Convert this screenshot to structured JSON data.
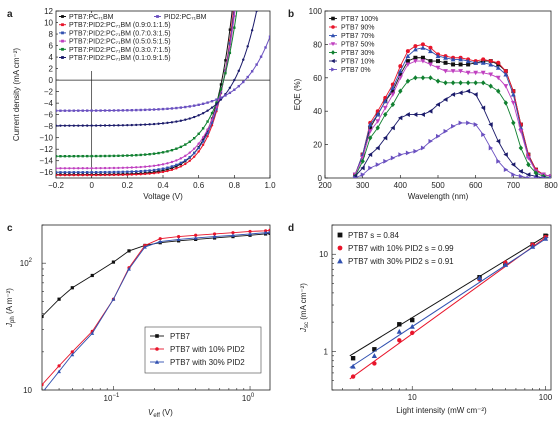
{
  "chart_data": [
    {
      "panel": "a",
      "type": "line",
      "xlabel": "Voltage (V)",
      "ylabel": "Current density (mA cm⁻²)",
      "xlim": [
        -0.2,
        1.0
      ],
      "ylim": [
        -17,
        12
      ],
      "xticks": [
        "-0.2",
        "0",
        "0.2",
        "0.4",
        "0.6",
        "0.8",
        "1.0"
      ],
      "yticks": [
        "-16",
        "-14",
        "-12",
        "-10",
        "-8",
        "-6",
        "-4",
        "-2",
        "0",
        "2",
        "4",
        "6",
        "8",
        "10",
        "12"
      ],
      "legend_position": "top-left",
      "series": [
        {
          "name": "PTB7:PC₇₁BM",
          "color": "#111111",
          "jsc": -16.4,
          "voc": 0.73,
          "ff": 0.68
        },
        {
          "name": "PTB7:PID2:PC₇₁BM (0.9:0.1:1.5)",
          "color": "#e8142a",
          "jsc": -16.5,
          "voc": 0.74,
          "ff": 0.7
        },
        {
          "name": "PTB7:PID2:PC₇₁BM (0.7:0.3:1.5)",
          "color": "#3050b0",
          "jsc": -16.0,
          "voc": 0.74,
          "ff": 0.68
        },
        {
          "name": "PTB7:PID2:PC₇₁BM (0.5:0.5:1.5)",
          "color": "#c040c0",
          "jsc": -15.3,
          "voc": 0.74,
          "ff": 0.66
        },
        {
          "name": "PTB7:PID2:PC₇₁BM (0.3:0.7:1.5)",
          "color": "#108030",
          "jsc": -13.2,
          "voc": 0.74,
          "ff": 0.64
        },
        {
          "name": "PTB7:PID2:PC₇₁BM (0.1:0.9:1.5)",
          "color": "#1a1a6a",
          "jsc": -7.9,
          "voc": 0.8,
          "ff": 0.55
        },
        {
          "name": "PID2:PC₇₁BM",
          "color": "#6a50c0",
          "jsc": -5.3,
          "voc": 0.86,
          "ff": 0.45
        }
      ]
    },
    {
      "panel": "b",
      "type": "line",
      "xlabel": "Wavelength (nm)",
      "ylabel": "EQE (%)",
      "xlim": [
        200,
        800
      ],
      "ylim": [
        0,
        100
      ],
      "xticks": [
        "200",
        "300",
        "400",
        "500",
        "600",
        "700",
        "800"
      ],
      "yticks": [
        "0",
        "20",
        "40",
        "60",
        "80",
        "100"
      ],
      "legend_position": "top-left",
      "x": [
        280,
        300,
        320,
        340,
        360,
        380,
        400,
        420,
        440,
        460,
        480,
        500,
        520,
        540,
        560,
        580,
        600,
        620,
        640,
        660,
        680,
        700,
        720,
        740,
        760,
        780,
        800
      ],
      "series": [
        {
          "name": "PTB7 100%",
          "color": "#111111",
          "marker": "square",
          "values": [
            2,
            14,
            30,
            38,
            46,
            52,
            62,
            70,
            72,
            72,
            70,
            70,
            69,
            68,
            68,
            68,
            69,
            70,
            70,
            68,
            64,
            52,
            32,
            14,
            5,
            2,
            1
          ]
        },
        {
          "name": "PTB7 90%",
          "color": "#e8142a",
          "marker": "circle",
          "values": [
            2,
            14,
            33,
            40,
            48,
            56,
            67,
            76,
            79,
            80,
            78,
            74,
            73,
            72,
            72,
            71,
            70,
            71,
            70,
            69,
            64,
            52,
            32,
            14,
            5,
            2,
            1
          ]
        },
        {
          "name": "PTB7 70%",
          "color": "#3050b0",
          "marker": "triangle-up",
          "values": [
            2,
            14,
            32,
            38,
            46,
            54,
            64,
            73,
            77,
            78,
            76,
            73,
            72,
            71,
            71,
            70,
            69,
            69,
            68,
            66,
            62,
            50,
            30,
            13,
            4,
            2,
            1
          ]
        },
        {
          "name": "PTB7 50%",
          "color": "#c040c0",
          "marker": "triangle-down",
          "values": [
            2,
            12,
            28,
            34,
            42,
            50,
            60,
            68,
            70,
            70,
            68,
            66,
            64,
            64,
            64,
            63,
            63,
            63,
            62,
            60,
            55,
            45,
            28,
            12,
            4,
            2,
            1
          ]
        },
        {
          "name": "PTB7 30%",
          "color": "#108030",
          "marker": "diamond",
          "values": [
            1,
            10,
            24,
            30,
            38,
            44,
            52,
            58,
            60,
            60,
            60,
            58,
            57,
            57,
            57,
            57,
            57,
            57,
            55,
            52,
            45,
            33,
            18,
            8,
            3,
            1,
            0
          ]
        },
        {
          "name": "PTB7 10%",
          "color": "#1a1a6a",
          "marker": "triangle-left",
          "values": [
            1,
            6,
            14,
            18,
            24,
            30,
            36,
            38,
            38,
            38,
            40,
            44,
            47,
            50,
            51,
            52,
            50,
            42,
            32,
            22,
            14,
            8,
            4,
            2,
            1,
            0,
            0
          ]
        },
        {
          "name": "PTB7 0%",
          "color": "#6a50c0",
          "marker": "triangle-right",
          "values": [
            0,
            2,
            6,
            8,
            10,
            12,
            14,
            15,
            16,
            18,
            22,
            25,
            28,
            31,
            33,
            33,
            32,
            26,
            18,
            10,
            5,
            2,
            1,
            0,
            0,
            0,
            0
          ]
        }
      ]
    },
    {
      "panel": "c",
      "type": "line",
      "xscale": "log",
      "yscale": "log",
      "xlabel_main": "V",
      "xlabel_sub": "eff",
      "xlabel_unit": " (V)",
      "ylabel_main": "J",
      "ylabel_sub": "ph",
      "ylabel_unit": " (A m⁻²)",
      "xlim": [
        0.03,
        1.4
      ],
      "ylim": [
        10,
        200
      ],
      "xticks": [
        {
          "label": "10",
          "sup": "−1",
          "value": 0.1
        },
        {
          "label": "10",
          "sup": "0",
          "value": 1
        }
      ],
      "yticks": [
        {
          "label": "10",
          "sup": "",
          "value": 10
        },
        {
          "label": "10",
          "sup": "2",
          "value": 100
        }
      ],
      "legend_position": "bottom-right",
      "x": [
        0.03,
        0.04,
        0.05,
        0.07,
        0.1,
        0.13,
        0.17,
        0.22,
        0.3,
        0.4,
        0.55,
        0.75,
        1.0,
        1.3,
        1.4
      ],
      "series": [
        {
          "name": "PTB7",
          "color": "#111111",
          "marker": "square",
          "values": [
            38,
            52,
            64,
            80,
            102,
            125,
            138,
            145,
            150,
            154,
            158,
            162,
            166,
            170,
            172
          ]
        },
        {
          "name": "PTB7 with 10% PID2",
          "color": "#e8142a",
          "marker": "circle",
          "values": [
            11,
            15.5,
            20,
            29,
            52,
            92,
            138,
            156,
            162,
            166,
            170,
            174,
            178,
            180,
            182
          ]
        },
        {
          "name": "PTB7 with 30% PID2",
          "color": "#3050b0",
          "marker": "triangle-up",
          "values": [
            9.5,
            14,
            19,
            28,
            52,
            90,
            134,
            148,
            154,
            158,
            162,
            166,
            170,
            174,
            176
          ]
        }
      ]
    },
    {
      "panel": "d",
      "type": "scatter",
      "xscale": "log",
      "yscale": "log",
      "xlabel": "Light intensity (mW cm⁻²)",
      "ylabel_main": "J",
      "ylabel_sub": "sc",
      "ylabel_unit": " (mA cm⁻²)",
      "xlim": [
        2.5,
        110
      ],
      "ylim": [
        0.4,
        20
      ],
      "xticks": [
        {
          "label": "10",
          "value": 10
        },
        {
          "label": "100",
          "value": 100
        }
      ],
      "yticks": [
        {
          "label": "1",
          "value": 1
        },
        {
          "label": "10",
          "value": 10
        }
      ],
      "legend_position": "top-left",
      "x": [
        3.6,
        5.2,
        8.0,
        10.0,
        32.0,
        50.0,
        80.0,
        100.0
      ],
      "series": [
        {
          "name": "PTB7 s = 0.84",
          "color": "#111111",
          "marker": "square",
          "values": [
            0.85,
            1.05,
            1.9,
            2.1,
            5.8,
            7.9,
            12.6,
            15.5
          ],
          "fit_x": [
            3.4,
            105
          ],
          "fit_y": [
            0.9,
            16.0
          ]
        },
        {
          "name": "PTB7 with 10% PID2 s = 0.99",
          "color": "#e8142a",
          "marker": "circle",
          "values": [
            0.55,
            0.75,
            1.3,
            1.55,
            5.5,
            8.2,
            12.5,
            15.0
          ],
          "fit_x": [
            3.4,
            105
          ],
          "fit_y": [
            0.52,
            15.6
          ]
        },
        {
          "name": "PTB7 with 30% PID2 s = 0.91",
          "color": "#3050b0",
          "marker": "triangle-up",
          "values": [
            0.7,
            0.9,
            1.6,
            1.8,
            5.7,
            7.8,
            12.0,
            14.5
          ],
          "fit_x": [
            3.4,
            105
          ],
          "fit_y": [
            0.68,
            15.0
          ]
        }
      ]
    }
  ],
  "panel_letters": [
    "a",
    "b",
    "c",
    "d"
  ]
}
